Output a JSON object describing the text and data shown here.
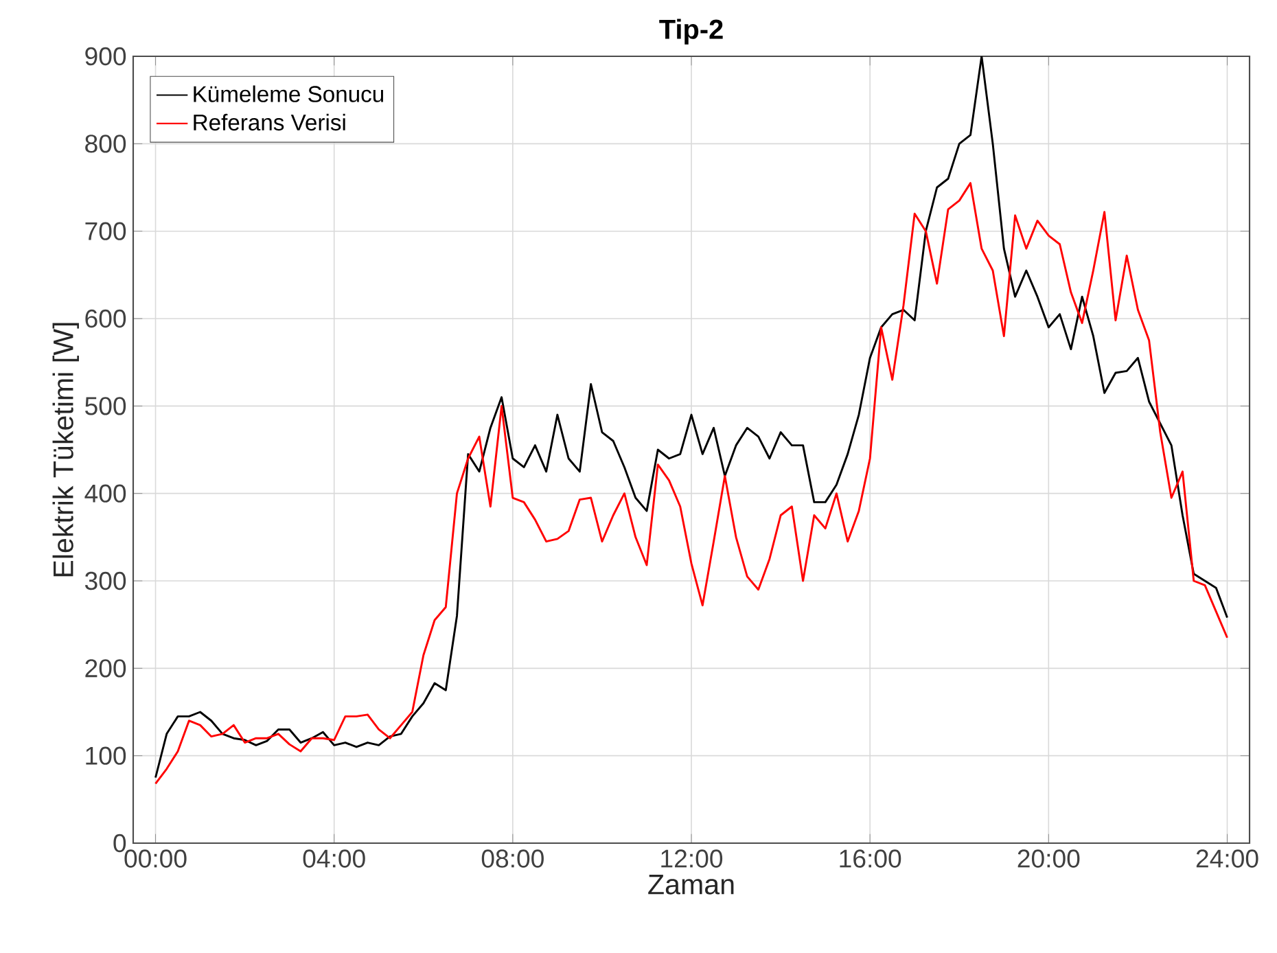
{
  "chart_data": {
    "type": "line",
    "title": "Tip-2",
    "xlabel": "Zaman",
    "ylabel": "Elektrik Tüketimi [W]",
    "x": [
      0,
      0.25,
      0.5,
      0.75,
      1,
      1.25,
      1.5,
      1.75,
      2,
      2.25,
      2.5,
      2.75,
      3,
      3.25,
      3.5,
      3.75,
      4,
      4.25,
      4.5,
      4.75,
      5,
      5.25,
      5.5,
      5.75,
      6,
      6.25,
      6.5,
      6.75,
      7,
      7.25,
      7.5,
      7.75,
      8,
      8.25,
      8.5,
      8.75,
      9,
      9.25,
      9.5,
      9.75,
      10,
      10.25,
      10.5,
      10.75,
      11,
      11.25,
      11.5,
      11.75,
      12,
      12.25,
      12.5,
      12.75,
      13,
      13.25,
      13.5,
      13.75,
      14,
      14.25,
      14.5,
      14.75,
      15,
      15.25,
      15.5,
      15.75,
      16,
      16.25,
      16.5,
      16.75,
      17,
      17.25,
      17.5,
      17.75,
      18,
      18.25,
      18.5,
      18.75,
      19,
      19.25,
      19.5,
      19.75,
      20,
      20.25,
      20.5,
      20.75,
      21,
      21.25,
      21.5,
      21.75,
      22,
      22.25,
      22.5,
      22.75,
      23,
      23.25,
      23.5,
      23.75,
      24
    ],
    "series": [
      {
        "name": "Kümeleme Sonucu",
        "color": "#000000",
        "values": [
          75,
          125,
          145,
          145,
          150,
          140,
          125,
          120,
          118,
          112,
          117,
          130,
          130,
          115,
          120,
          127,
          112,
          115,
          110,
          115,
          112,
          122,
          125,
          145,
          160,
          183,
          175,
          260,
          445,
          425,
          475,
          510,
          440,
          430,
          455,
          425,
          490,
          440,
          425,
          525,
          470,
          460,
          430,
          395,
          380,
          450,
          440,
          445,
          490,
          445,
          475,
          420,
          455,
          475,
          465,
          440,
          470,
          455,
          455,
          390,
          390,
          410,
          445,
          490,
          555,
          590,
          605,
          610,
          598,
          700,
          750,
          760,
          800,
          810,
          900,
          800,
          680,
          625,
          655,
          625,
          590,
          605,
          565,
          625,
          580,
          515,
          538,
          540,
          555,
          505,
          480,
          455,
          375,
          308,
          300,
          292,
          258
        ]
      },
      {
        "name": "Referans Verisi",
        "color": "#ff0000",
        "values": [
          68,
          85,
          105,
          140,
          135,
          122,
          125,
          135,
          115,
          120,
          120,
          125,
          113,
          105,
          120,
          120,
          118,
          145,
          145,
          147,
          130,
          120,
          135,
          150,
          215,
          255,
          270,
          400,
          440,
          465,
          385,
          500,
          395,
          390,
          370,
          345,
          348,
          357,
          393,
          395,
          345,
          375,
          400,
          350,
          318,
          433,
          415,
          385,
          320,
          272,
          345,
          420,
          350,
          305,
          290,
          325,
          375,
          385,
          300,
          375,
          360,
          400,
          345,
          380,
          440,
          590,
          530,
          615,
          720,
          700,
          640,
          725,
          735,
          755,
          680,
          655,
          580,
          718,
          680,
          712,
          695,
          685,
          630,
          595,
          655,
          722,
          598,
          672,
          610,
          575,
          470,
          395,
          425,
          300,
          295,
          265,
          235
        ]
      }
    ],
    "xlim": [
      -0.5,
      24.5
    ],
    "ylim": [
      0,
      900
    ],
    "xticks": [
      {
        "value": 0,
        "label": "00:00"
      },
      {
        "value": 4,
        "label": "04:00"
      },
      {
        "value": 8,
        "label": "08:00"
      },
      {
        "value": 12,
        "label": "12:00"
      },
      {
        "value": 16,
        "label": "16:00"
      },
      {
        "value": 20,
        "label": "20:00"
      },
      {
        "value": 24,
        "label": "24:00"
      }
    ],
    "yticks": [
      0,
      100,
      200,
      300,
      400,
      500,
      600,
      700,
      800,
      900
    ],
    "grid": true,
    "legend": "top left",
    "marker": "none",
    "line_style": "solid"
  }
}
